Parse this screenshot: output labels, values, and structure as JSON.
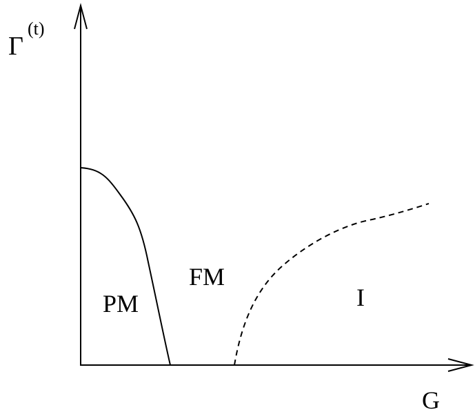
{
  "axes": {
    "y_label": "Γ",
    "y_label_superscript": "(t)",
    "x_label": "G"
  },
  "regions": {
    "pm": "PM",
    "fm": "FM",
    "insulator": "I"
  },
  "boundaries": {
    "pm_fm": {
      "style": "solid"
    },
    "fm_i": {
      "style": "dashed"
    }
  },
  "colors": {
    "ink": "#000000",
    "background": "#ffffff"
  }
}
